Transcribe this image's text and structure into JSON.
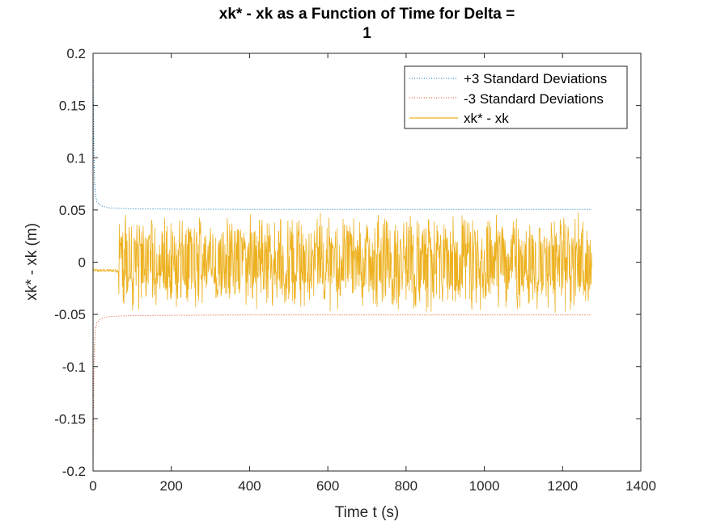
{
  "chart_data": {
    "type": "line",
    "title": "xk* - xk as a Function of Time for Delta = 1",
    "title_lines": [
      "xk* - xk as a Function of Time for Delta =",
      "1"
    ],
    "xlabel": "Time t (s)",
    "ylabel": "xk* - xk (m)",
    "xlim": [
      0,
      1400
    ],
    "ylim": [
      -0.2,
      0.2
    ],
    "xticks": [
      0,
      200,
      400,
      600,
      800,
      1000,
      1200,
      1400
    ],
    "xtick_labels": [
      "0",
      "200",
      "400",
      "600",
      "800",
      "1000",
      "1200",
      "1400"
    ],
    "yticks": [
      0.2,
      0.15,
      0.1,
      0.05,
      0,
      -0.05,
      -0.1,
      -0.15,
      -0.2
    ],
    "ytick_labels": [
      "0.2",
      "0.15",
      "0.1",
      "0.05",
      "0",
      "-0.05",
      "-0.1",
      "-0.15",
      "-0.2"
    ],
    "grid": false,
    "legend_position": "top-right",
    "series": [
      {
        "name": "+3 Standard Deviations",
        "color": "#0072BD",
        "style": "dotted",
        "x": [
          0,
          1,
          2,
          3,
          4,
          6,
          10,
          20,
          40,
          100,
          400,
          800,
          1200,
          1275
        ],
        "y": [
          0.2,
          0.15,
          0.11,
          0.09,
          0.075,
          0.065,
          0.058,
          0.054,
          0.052,
          0.051,
          0.0505,
          0.0505,
          0.0505,
          0.0505
        ]
      },
      {
        "name": "-3 Standard Deviations",
        "color": "#D95319",
        "style": "dotted",
        "x": [
          0,
          1,
          2,
          3,
          4,
          6,
          10,
          20,
          40,
          100,
          400,
          800,
          1200,
          1275
        ],
        "y": [
          -0.2,
          -0.15,
          -0.11,
          -0.09,
          -0.075,
          -0.065,
          -0.058,
          -0.054,
          -0.052,
          -0.051,
          -0.0505,
          -0.0505,
          -0.0505,
          -0.0505
        ]
      },
      {
        "name": "xk* - xk",
        "color": "#EDB120",
        "style": "solid",
        "x_range": [
          0,
          1275
        ],
        "quiet_until": 65,
        "quiet_mean": -0.008,
        "quiet_spread": 0.003,
        "noisy_amplitude": 0.05,
        "approx_min": -0.05,
        "approx_max": 0.055
      }
    ]
  }
}
